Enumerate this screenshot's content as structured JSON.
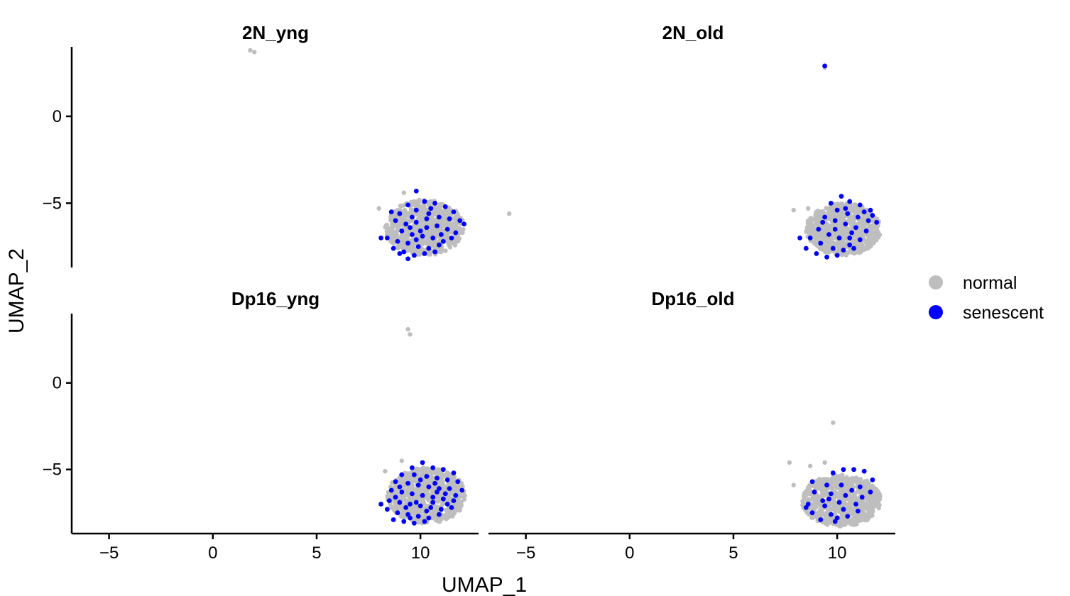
{
  "chart_data": {
    "type": "scatter",
    "xlabel": "UMAP_1",
    "ylabel": "UMAP_2",
    "xlim": [
      -6.8,
      12.8
    ],
    "ylim": [
      -8.7,
      4.0
    ],
    "xticks": [
      -5,
      0,
      5,
      10
    ],
    "xtick_labels": [
      "−5",
      "0",
      "5",
      "10"
    ],
    "yticks": [
      0,
      -5
    ],
    "ytick_labels": [
      "0",
      "−5"
    ],
    "grid": false,
    "legend": {
      "position": "right",
      "entries": [
        {
          "label": "normal",
          "color": "#bebebe"
        },
        {
          "label": "senescent",
          "color": "#0000ff"
        }
      ]
    },
    "facets": [
      {
        "title": "2N_yng",
        "normal_cluster": {
          "cx": 10.2,
          "cy": -6.4,
          "rx": 1.9,
          "ry": 1.6
        },
        "normal_outliers": [
          [
            1.8,
            3.8
          ],
          [
            2.0,
            3.7
          ],
          [
            8.0,
            -5.3
          ],
          [
            9.2,
            -4.4
          ]
        ],
        "senescent": [
          [
            9.8,
            -4.3
          ],
          [
            10.2,
            -4.9
          ],
          [
            9.4,
            -5.1
          ],
          [
            10.7,
            -5.0
          ],
          [
            11.2,
            -5.2
          ],
          [
            11.6,
            -5.5
          ],
          [
            9.0,
            -5.6
          ],
          [
            9.8,
            -5.4
          ],
          [
            10.4,
            -5.6
          ],
          [
            10.9,
            -5.8
          ],
          [
            11.4,
            -5.9
          ],
          [
            11.9,
            -6.0
          ],
          [
            12.1,
            -6.2
          ],
          [
            8.8,
            -6.0
          ],
          [
            9.3,
            -6.2
          ],
          [
            9.8,
            -6.1
          ],
          [
            10.3,
            -6.4
          ],
          [
            10.8,
            -6.3
          ],
          [
            11.3,
            -6.5
          ],
          [
            9.1,
            -6.6
          ],
          [
            9.6,
            -6.8
          ],
          [
            10.1,
            -6.9
          ],
          [
            10.6,
            -7.0
          ],
          [
            11.0,
            -6.8
          ],
          [
            8.4,
            -7.0
          ],
          [
            8.9,
            -7.2
          ],
          [
            9.4,
            -7.3
          ],
          [
            9.9,
            -7.5
          ],
          [
            10.4,
            -7.6
          ],
          [
            11.1,
            -7.2
          ],
          [
            11.5,
            -7.0
          ],
          [
            8.7,
            -7.6
          ],
          [
            9.2,
            -7.8
          ],
          [
            9.7,
            -8.0
          ],
          [
            10.2,
            -7.9
          ],
          [
            10.7,
            -7.8
          ],
          [
            9.4,
            -8.2
          ],
          [
            8.1,
            -7.0
          ],
          [
            8.6,
            -5.5
          ],
          [
            9.6,
            -5.8
          ],
          [
            10.0,
            -6.6
          ],
          [
            9.5,
            -6.4
          ],
          [
            10.5,
            -5.3
          ],
          [
            11.7,
            -6.7
          ],
          [
            10.9,
            -7.4
          ],
          [
            9.0,
            -7.9
          ],
          [
            9.8,
            -7.1
          ],
          [
            10.3,
            -5.9
          ]
        ]
      },
      {
        "title": "2N_old",
        "normal_cluster": {
          "cx": 10.3,
          "cy": -6.5,
          "rx": 1.8,
          "ry": 1.5
        },
        "normal_outliers": [
          [
            9.4,
            2.8
          ],
          [
            -5.8,
            -5.6
          ],
          [
            7.9,
            -5.4
          ],
          [
            8.6,
            -5.3
          ]
        ],
        "senescent": [
          [
            9.4,
            2.9
          ],
          [
            10.2,
            -4.6
          ],
          [
            10.6,
            -4.9
          ],
          [
            9.7,
            -5.0
          ],
          [
            11.1,
            -5.1
          ],
          [
            11.6,
            -5.4
          ],
          [
            10.0,
            -5.4
          ],
          [
            10.5,
            -5.6
          ],
          [
            11.0,
            -5.8
          ],
          [
            11.5,
            -6.0
          ],
          [
            11.9,
            -6.1
          ],
          [
            9.4,
            -5.8
          ],
          [
            9.9,
            -6.0
          ],
          [
            10.4,
            -6.2
          ],
          [
            10.9,
            -6.4
          ],
          [
            11.4,
            -6.6
          ],
          [
            9.1,
            -6.5
          ],
          [
            9.6,
            -6.8
          ],
          [
            10.1,
            -7.0
          ],
          [
            10.6,
            -7.0
          ],
          [
            11.1,
            -7.1
          ],
          [
            8.7,
            -7.0
          ],
          [
            9.2,
            -7.3
          ],
          [
            9.8,
            -7.6
          ],
          [
            10.3,
            -7.7
          ],
          [
            10.8,
            -7.6
          ],
          [
            8.5,
            -7.6
          ],
          [
            9.0,
            -7.9
          ],
          [
            9.5,
            -8.1
          ],
          [
            10.0,
            -8.0
          ],
          [
            8.2,
            -7.0
          ],
          [
            11.3,
            -5.5
          ],
          [
            10.7,
            -6.7
          ],
          [
            9.9,
            -6.5
          ],
          [
            10.4,
            -5.3
          ],
          [
            11.7,
            -5.7
          ],
          [
            9.3,
            -6.1
          ],
          [
            10.6,
            -7.4
          ]
        ]
      },
      {
        "title": "Dp16_yng",
        "normal_cluster": {
          "cx": 10.3,
          "cy": -6.5,
          "rx": 1.9,
          "ry": 1.6
        },
        "normal_outliers": [
          [
            9.4,
            3.1
          ],
          [
            9.5,
            2.8
          ],
          [
            8.3,
            -5.1
          ],
          [
            9.1,
            -4.5
          ]
        ],
        "senescent": [
          [
            10.1,
            -4.6
          ],
          [
            9.6,
            -4.9
          ],
          [
            10.6,
            -4.9
          ],
          [
            11.1,
            -5.0
          ],
          [
            11.6,
            -5.2
          ],
          [
            9.1,
            -5.3
          ],
          [
            9.7,
            -5.3
          ],
          [
            10.3,
            -5.4
          ],
          [
            10.8,
            -5.5
          ],
          [
            11.3,
            -5.6
          ],
          [
            11.8,
            -5.7
          ],
          [
            8.8,
            -5.7
          ],
          [
            9.4,
            -5.8
          ],
          [
            9.9,
            -5.9
          ],
          [
            10.4,
            -6.0
          ],
          [
            10.9,
            -6.1
          ],
          [
            11.4,
            -6.1
          ],
          [
            12.0,
            -6.2
          ],
          [
            8.6,
            -6.2
          ],
          [
            9.1,
            -6.3
          ],
          [
            9.6,
            -6.4
          ],
          [
            10.1,
            -6.5
          ],
          [
            10.6,
            -6.6
          ],
          [
            11.1,
            -6.7
          ],
          [
            11.6,
            -6.8
          ],
          [
            8.5,
            -6.8
          ],
          [
            9.0,
            -6.9
          ],
          [
            9.5,
            -7.0
          ],
          [
            10.0,
            -7.1
          ],
          [
            10.5,
            -7.2
          ],
          [
            11.0,
            -7.3
          ],
          [
            11.5,
            -7.2
          ],
          [
            8.4,
            -7.3
          ],
          [
            8.9,
            -7.5
          ],
          [
            9.4,
            -7.6
          ],
          [
            9.9,
            -7.7
          ],
          [
            10.4,
            -7.8
          ],
          [
            10.9,
            -7.6
          ],
          [
            8.7,
            -7.9
          ],
          [
            9.2,
            -8.0
          ],
          [
            9.7,
            -8.1
          ],
          [
            10.2,
            -8.0
          ],
          [
            8.1,
            -7.0
          ],
          [
            9.3,
            -7.2
          ],
          [
            10.7,
            -5.8
          ],
          [
            11.2,
            -6.4
          ],
          [
            9.8,
            -6.9
          ],
          [
            10.3,
            -7.4
          ],
          [
            9.0,
            -6.0
          ],
          [
            11.7,
            -6.5
          ],
          [
            10.0,
            -5.6
          ],
          [
            10.6,
            -6.9
          ],
          [
            9.5,
            -7.8
          ],
          [
            8.8,
            -6.6
          ],
          [
            11.3,
            -7.0
          ],
          [
            10.8,
            -6.3
          ]
        ]
      },
      {
        "title": "Dp16_old",
        "normal_cluster": {
          "cx": 10.2,
          "cy": -6.8,
          "rx": 1.9,
          "ry": 1.5
        },
        "normal_outliers": [
          [
            9.8,
            -2.3
          ],
          [
            7.7,
            -4.6
          ],
          [
            8.7,
            -4.8
          ],
          [
            9.4,
            -4.6
          ],
          [
            7.9,
            -5.9
          ]
        ],
        "senescent": [
          [
            10.3,
            -5.0
          ],
          [
            10.8,
            -5.0
          ],
          [
            11.3,
            -5.1
          ],
          [
            9.8,
            -5.2
          ],
          [
            11.7,
            -5.6
          ],
          [
            8.8,
            -5.7
          ],
          [
            9.5,
            -5.9
          ],
          [
            10.2,
            -5.9
          ],
          [
            11.1,
            -6.0
          ],
          [
            11.6,
            -6.3
          ],
          [
            8.9,
            -6.3
          ],
          [
            9.7,
            -6.4
          ],
          [
            10.4,
            -6.5
          ],
          [
            11.2,
            -6.6
          ],
          [
            9.3,
            -6.8
          ],
          [
            10.1,
            -6.9
          ],
          [
            10.9,
            -7.0
          ],
          [
            8.6,
            -7.0
          ],
          [
            9.4,
            -7.1
          ],
          [
            10.3,
            -7.3
          ],
          [
            11.0,
            -7.4
          ],
          [
            8.8,
            -7.5
          ],
          [
            9.7,
            -7.6
          ],
          [
            10.5,
            -7.7
          ],
          [
            9.2,
            -7.9
          ],
          [
            10.0,
            -7.8
          ],
          [
            8.5,
            -7.2
          ],
          [
            9.9,
            -8.0
          ],
          [
            10.7,
            -6.2
          ],
          [
            9.6,
            -6.7
          ]
        ]
      }
    ]
  }
}
